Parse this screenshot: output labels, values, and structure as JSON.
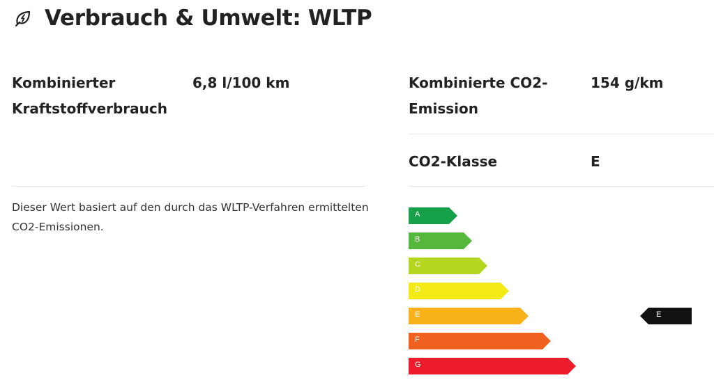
{
  "header": {
    "title": "Verbrauch & Umwelt: WLTP",
    "icon": "leaf-bolt-icon"
  },
  "consumption": {
    "label": "Kombinierter Kraftstoffverbrauch",
    "value": "6,8 l/100 km"
  },
  "emission": {
    "label": "Kombinierte CO2-Emission",
    "value": "154 g/km"
  },
  "co2_class": {
    "label": "CO2-Klasse",
    "value": "E"
  },
  "note": "Dieser Wert basiert auf den durch das WLTP-Verfahren ermittelten CO2-Emissionen.",
  "energy_label": {
    "classes": [
      {
        "letter": "A",
        "color": "#17a04a"
      },
      {
        "letter": "B",
        "color": "#55b83d"
      },
      {
        "letter": "C",
        "color": "#b5d61e"
      },
      {
        "letter": "D",
        "color": "#f4ea16"
      },
      {
        "letter": "E",
        "color": "#fab21a"
      },
      {
        "letter": "F",
        "color": "#f0601f"
      },
      {
        "letter": "G",
        "color": "#ec1c2c"
      }
    ],
    "selected": "E",
    "marker_color": "#111111"
  }
}
